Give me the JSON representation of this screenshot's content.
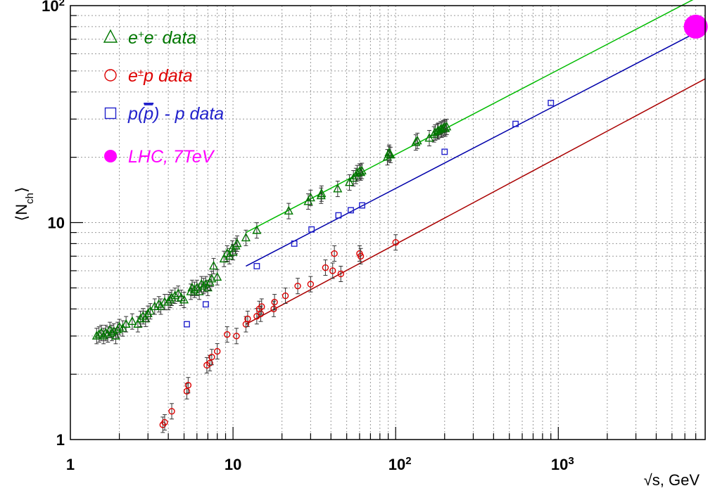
{
  "chart_data": {
    "type": "scatter",
    "title": "",
    "xlabel": "√s, GeV",
    "ylabel": "⟨N_ch⟩",
    "xscale": "log",
    "yscale": "log",
    "xlim": [
      1,
      8000
    ],
    "ylim": [
      1,
      100
    ],
    "grid": true,
    "legend_position": "top-left",
    "x_ticks": [
      {
        "value": 1,
        "base": "1",
        "exp": ""
      },
      {
        "value": 10,
        "base": "10",
        "exp": ""
      },
      {
        "value": 100,
        "base": "10",
        "exp": "2"
      },
      {
        "value": 1000,
        "base": "10",
        "exp": "3"
      }
    ],
    "y_ticks": [
      {
        "value": 1,
        "base": "1",
        "exp": ""
      },
      {
        "value": 10,
        "base": "10",
        "exp": ""
      },
      {
        "value": 100,
        "base": "10",
        "exp": "2"
      }
    ],
    "series": [
      {
        "name": "e+e- data",
        "marker": "triangle",
        "color": "#007700",
        "points": [
          [
            1.45,
            3.0
          ],
          [
            1.5,
            3.05
          ],
          [
            1.55,
            3.1
          ],
          [
            1.6,
            3.0
          ],
          [
            1.65,
            3.1
          ],
          [
            1.7,
            3.05
          ],
          [
            1.75,
            3.2
          ],
          [
            1.8,
            3.1
          ],
          [
            1.85,
            3.15
          ],
          [
            1.9,
            3.0
          ],
          [
            1.95,
            3.2
          ],
          [
            2.0,
            3.3
          ],
          [
            2.1,
            3.25
          ],
          [
            2.2,
            3.4
          ],
          [
            2.4,
            3.5
          ],
          [
            2.6,
            3.4
          ],
          [
            2.7,
            3.6
          ],
          [
            2.8,
            3.7
          ],
          [
            2.9,
            3.6
          ],
          [
            3.0,
            3.8
          ],
          [
            3.1,
            3.9
          ],
          [
            3.3,
            4.1
          ],
          [
            3.5,
            4.2
          ],
          [
            3.6,
            4.1
          ],
          [
            3.8,
            4.3
          ],
          [
            4.0,
            4.3
          ],
          [
            4.1,
            4.4
          ],
          [
            4.2,
            4.5
          ],
          [
            4.4,
            4.6
          ],
          [
            4.6,
            4.7
          ],
          [
            4.8,
            4.5
          ],
          [
            5.0,
            4.4
          ],
          [
            5.5,
            4.8
          ],
          [
            5.6,
            5.0
          ],
          [
            5.8,
            4.9
          ],
          [
            6.0,
            5.0
          ],
          [
            6.2,
            4.8
          ],
          [
            6.4,
            5.2
          ],
          [
            6.6,
            5.1
          ],
          [
            6.8,
            5.2
          ],
          [
            7.0,
            5.0
          ],
          [
            7.2,
            5.3
          ],
          [
            7.4,
            5.5
          ],
          [
            7.6,
            6.3
          ],
          [
            8.0,
            5.6
          ],
          [
            8.8,
            6.8
          ],
          [
            9.2,
            7.2
          ],
          [
            9.5,
            7.0
          ],
          [
            9.9,
            7.6
          ],
          [
            10.0,
            7.3
          ],
          [
            10.4,
            7.8
          ],
          [
            10.6,
            8.0
          ],
          [
            12.0,
            8.5
          ],
          [
            14.0,
            9.2
          ],
          [
            22.0,
            11.3
          ],
          [
            29.0,
            12.5
          ],
          [
            30.0,
            13.0
          ],
          [
            34.8,
            13.3
          ],
          [
            35.0,
            13.6
          ],
          [
            44.0,
            14.3
          ],
          [
            52.0,
            15.3
          ],
          [
            55.0,
            16.0
          ],
          [
            57.0,
            16.4
          ],
          [
            58.0,
            16.9
          ],
          [
            60.0,
            17.2
          ],
          [
            61.0,
            17.0
          ],
          [
            62.0,
            17.3
          ],
          [
            89.0,
            20.0
          ],
          [
            91.0,
            20.7
          ],
          [
            91.2,
            21.0
          ],
          [
            93.0,
            20.5
          ],
          [
            133.0,
            23.4
          ],
          [
            136.0,
            23.8
          ],
          [
            161.0,
            24.5
          ],
          [
            172.0,
            25.5
          ],
          [
            175.0,
            26.0
          ],
          [
            181.0,
            26.3
          ],
          [
            183.0,
            26.5
          ],
          [
            189.0,
            26.9
          ],
          [
            192.0,
            26.8
          ],
          [
            196.0,
            27.2
          ],
          [
            200.0,
            27.5
          ],
          [
            202.0,
            27.1
          ],
          [
            206.0,
            27.6
          ]
        ]
      },
      {
        "name": "e±p data",
        "marker": "circle",
        "color": "#dd0000",
        "points": [
          [
            3.7,
            1.17
          ],
          [
            3.8,
            1.2
          ],
          [
            4.2,
            1.35
          ],
          [
            5.2,
            1.67
          ],
          [
            5.3,
            1.78
          ],
          [
            6.9,
            2.2
          ],
          [
            7.2,
            2.25
          ],
          [
            7.4,
            2.4
          ],
          [
            8.0,
            2.55
          ],
          [
            9.2,
            3.05
          ],
          [
            10.5,
            3.0
          ],
          [
            12.0,
            3.4
          ],
          [
            12.3,
            3.6
          ],
          [
            14.0,
            3.7
          ],
          [
            14.5,
            4.0
          ],
          [
            14.8,
            3.8
          ],
          [
            15.0,
            4.1
          ],
          [
            17.8,
            4.0
          ],
          [
            18.0,
            4.3
          ],
          [
            21.0,
            4.6
          ],
          [
            25.0,
            5.1
          ],
          [
            30.0,
            5.2
          ],
          [
            37.0,
            6.2
          ],
          [
            41.0,
            6.0
          ],
          [
            42.0,
            7.2
          ],
          [
            46.0,
            5.8
          ],
          [
            60.0,
            7.2
          ],
          [
            61.0,
            7.0
          ],
          [
            100.0,
            8.1
          ]
        ]
      },
      {
        "name": "p(p̄) - p data",
        "marker": "square",
        "color": "#2222cc",
        "points": [
          [
            5.2,
            3.4
          ],
          [
            6.8,
            4.2
          ],
          [
            14.0,
            6.3
          ],
          [
            23.8,
            8.0
          ],
          [
            30.4,
            9.3
          ],
          [
            44.5,
            10.8
          ],
          [
            53.0,
            11.4
          ],
          [
            62.2,
            12.0
          ],
          [
            200.0,
            21.2
          ],
          [
            546.0,
            28.5
          ],
          [
            900.0,
            35.6
          ]
        ]
      },
      {
        "name": "LHC, 7TeV",
        "marker": "filled-circle",
        "color": "#ff00ff",
        "points": [
          [
            7000.0,
            80.0
          ]
        ]
      }
    ],
    "fits": [
      {
        "color": "#00bb00",
        "from": [
          12.0,
          9.0
        ],
        "to": [
          8000.0,
          114.0
        ]
      },
      {
        "color": "#0000aa",
        "from": [
          12.0,
          6.3
        ],
        "to": [
          8000.0,
          79.0
        ]
      },
      {
        "color": "#aa0000",
        "from": [
          12.0,
          3.4
        ],
        "to": [
          8000.0,
          46.0
        ]
      }
    ]
  }
}
